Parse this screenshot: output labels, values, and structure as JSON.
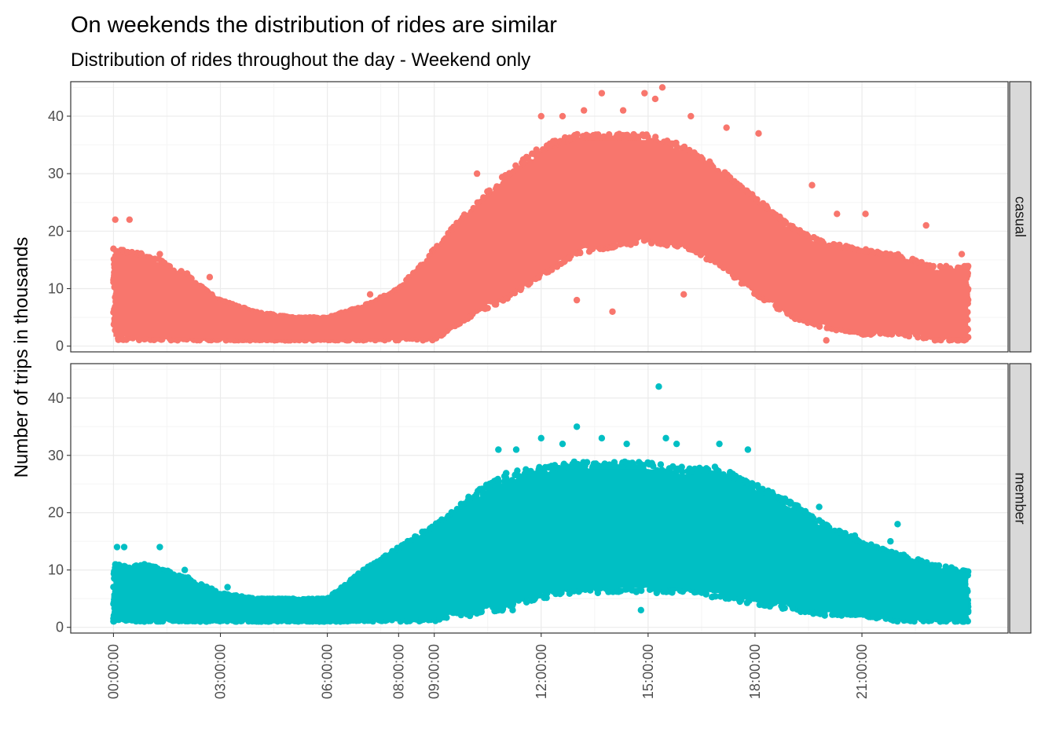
{
  "chart_data": {
    "type": "scatter",
    "title": "On weekends the distribution of rides are similar",
    "subtitle": "Distribution of rides throughout the day - Weekend only",
    "xlabel": "",
    "ylabel": "Number of trips in thousands",
    "x_ticks": [
      "00:00:00",
      "03:00:00",
      "06:00:00",
      "08:00:00",
      "09:00:00",
      "12:00:00",
      "15:00:00",
      "18:00:00",
      "21:00:00"
    ],
    "x_tick_hours": [
      0,
      3,
      6,
      8,
      9,
      12,
      15,
      18,
      21
    ],
    "xlim_hours": [
      -1.2,
      25.1
    ],
    "ylim": [
      -1,
      46
    ],
    "y_ticks": [
      "0",
      "10",
      "20",
      "30",
      "40"
    ],
    "y_tick_values": [
      0,
      10,
      20,
      30,
      40
    ],
    "grid": true,
    "x_range_hours": [
      0,
      23.98
    ],
    "panels": [
      {
        "name": "casual",
        "color": "#F8766D",
        "band_hours": [
          0,
          1,
          2,
          3,
          4,
          5,
          6,
          7,
          8,
          9,
          10,
          11,
          12,
          13,
          14,
          15,
          16,
          17,
          18,
          19,
          20,
          21,
          22,
          23,
          24
        ],
        "band_low": [
          1,
          1,
          1,
          1,
          1,
          1,
          1,
          1,
          1,
          1,
          5,
          8,
          12,
          16,
          17,
          18,
          17,
          14,
          9,
          5,
          3,
          2,
          2,
          1,
          1
        ],
        "band_high": [
          17,
          16,
          13,
          8,
          6,
          5,
          5,
          7,
          10,
          17,
          24,
          30,
          35,
          37,
          37,
          37,
          35,
          31,
          26,
          21,
          18,
          17,
          16,
          14,
          14
        ],
        "outliers": [
          {
            "x": 0.05,
            "y": 22
          },
          {
            "x": 0.45,
            "y": 22
          },
          {
            "x": 1.3,
            "y": 16
          },
          {
            "x": 2.7,
            "y": 12
          },
          {
            "x": 7.2,
            "y": 9
          },
          {
            "x": 10.2,
            "y": 30
          },
          {
            "x": 12.0,
            "y": 40
          },
          {
            "x": 12.6,
            "y": 40
          },
          {
            "x": 13.2,
            "y": 41
          },
          {
            "x": 13.7,
            "y": 44
          },
          {
            "x": 14.3,
            "y": 41
          },
          {
            "x": 14.9,
            "y": 44
          },
          {
            "x": 15.4,
            "y": 45
          },
          {
            "x": 15.2,
            "y": 43
          },
          {
            "x": 16.2,
            "y": 40
          },
          {
            "x": 17.2,
            "y": 38
          },
          {
            "x": 18.1,
            "y": 37
          },
          {
            "x": 19.6,
            "y": 28
          },
          {
            "x": 20.3,
            "y": 23
          },
          {
            "x": 21.1,
            "y": 23
          },
          {
            "x": 22.8,
            "y": 21
          },
          {
            "x": 23.8,
            "y": 16
          },
          {
            "x": 14.0,
            "y": 6
          },
          {
            "x": 20.0,
            "y": 1
          },
          {
            "x": 13.0,
            "y": 8
          },
          {
            "x": 16.0,
            "y": 9
          }
        ]
      },
      {
        "name": "member",
        "color": "#00BFC4",
        "band_hours": [
          0,
          1,
          2,
          3,
          4,
          5,
          6,
          7,
          8,
          9,
          10,
          11,
          12,
          13,
          14,
          15,
          16,
          17,
          18,
          19,
          20,
          21,
          22,
          23,
          24
        ],
        "band_low": [
          1,
          1,
          1,
          1,
          1,
          1,
          1,
          1,
          1,
          1,
          2,
          3,
          5,
          6,
          6,
          6,
          6,
          5,
          4,
          3,
          2,
          2,
          1,
          1,
          1
        ],
        "band_high": [
          11,
          11,
          9,
          6,
          5,
          5,
          5,
          10,
          14,
          18,
          23,
          27,
          28,
          29,
          29,
          29,
          28,
          28,
          25,
          22,
          18,
          15,
          13,
          11,
          10
        ],
        "outliers": [
          {
            "x": 0.1,
            "y": 14
          },
          {
            "x": 0.3,
            "y": 14
          },
          {
            "x": 1.3,
            "y": 14
          },
          {
            "x": 2.0,
            "y": 10
          },
          {
            "x": 3.2,
            "y": 7
          },
          {
            "x": 10.8,
            "y": 31
          },
          {
            "x": 11.3,
            "y": 31
          },
          {
            "x": 12.0,
            "y": 33
          },
          {
            "x": 12.6,
            "y": 32
          },
          {
            "x": 13.0,
            "y": 35
          },
          {
            "x": 13.7,
            "y": 33
          },
          {
            "x": 14.4,
            "y": 32
          },
          {
            "x": 15.3,
            "y": 42
          },
          {
            "x": 15.5,
            "y": 33
          },
          {
            "x": 15.8,
            "y": 32
          },
          {
            "x": 17.0,
            "y": 32
          },
          {
            "x": 17.8,
            "y": 31
          },
          {
            "x": 19.8,
            "y": 21
          },
          {
            "x": 20.8,
            "y": 16
          },
          {
            "x": 22.0,
            "y": 18
          },
          {
            "x": 21.8,
            "y": 15
          },
          {
            "x": 11.2,
            "y": 3
          },
          {
            "x": 14.8,
            "y": 3
          },
          {
            "x": 10.0,
            "y": 2
          }
        ]
      }
    ]
  },
  "style": {
    "panel_border": "#333333",
    "grid_major": "#ebebeb",
    "grid_minor": "#f5f5f5",
    "strip_fill": "#d9d9d9"
  }
}
